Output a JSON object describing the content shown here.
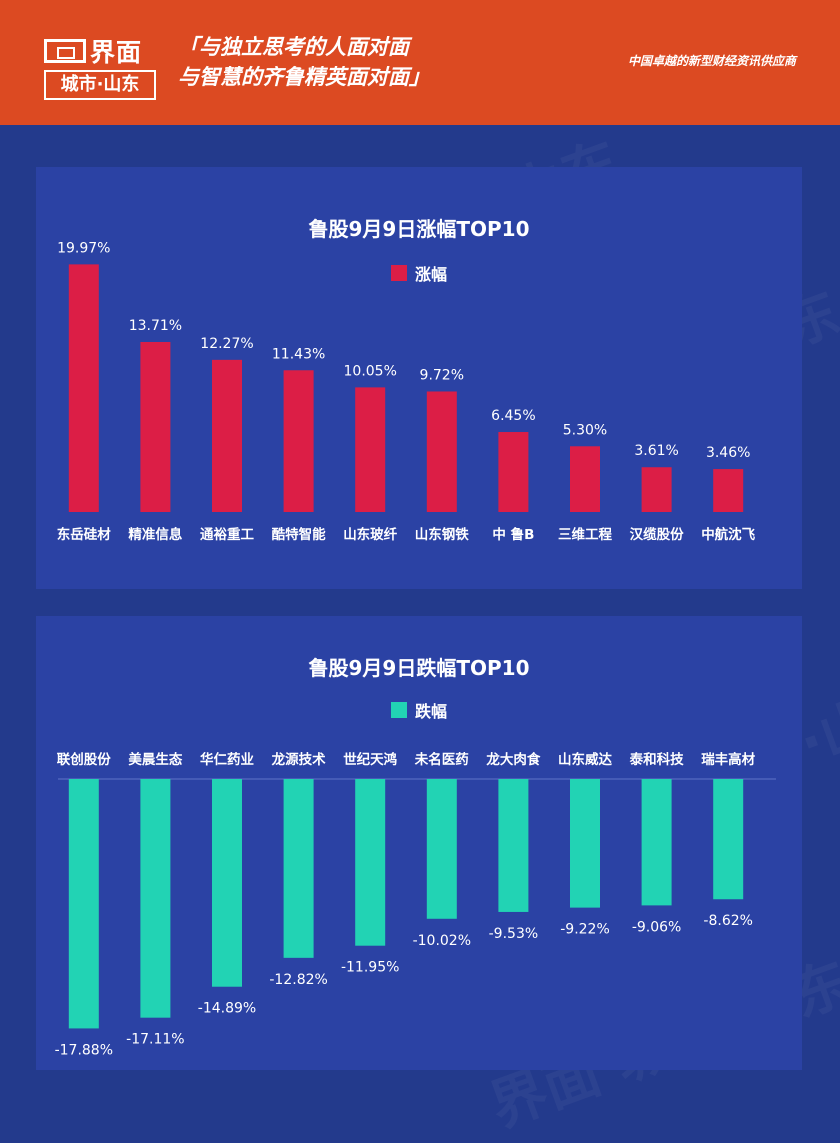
{
  "header": {
    "logo_name": "界面",
    "logo_city": "城市·山东",
    "slogan_line1": "「与独立思考的人面对面",
    "slogan_line2": "与智慧的齐鲁精英面对面」",
    "tagline": "中国卓越的新型财经资讯供应商"
  },
  "watermark": "界面 城市·山东",
  "colors": {
    "gain": "#dc1e46",
    "loss": "#22d3b4"
  },
  "chart_data": [
    {
      "type": "bar",
      "title": "鲁股9月9日涨幅TOP10",
      "legend": "涨幅",
      "categories": [
        "东岳硅材",
        "精准信息",
        "通裕重工",
        "酷特智能",
        "山东玻纤",
        "山东钢铁",
        "中 鲁B",
        "三维工程",
        "汉缆股份",
        "中航沈飞"
      ],
      "values": [
        19.97,
        13.71,
        12.27,
        11.43,
        10.05,
        9.72,
        6.45,
        5.3,
        3.61,
        3.46
      ],
      "value_labels": [
        "19.97%",
        "13.71%",
        "12.27%",
        "11.43%",
        "10.05%",
        "9.72%",
        "6.45%",
        "5.30%",
        "3.61%",
        "3.46%"
      ],
      "ylim": [
        0,
        20
      ]
    },
    {
      "type": "bar",
      "title": "鲁股9月9日跌幅TOP10",
      "legend": "跌幅",
      "categories": [
        "联创股份",
        "美晨生态",
        "华仁药业",
        "龙源技术",
        "世纪天鸿",
        "未名医药",
        "龙大肉食",
        "山东威达",
        "泰和科技",
        "瑞丰高材"
      ],
      "values": [
        -17.88,
        -17.11,
        -14.89,
        -12.82,
        -11.95,
        -10.02,
        -9.53,
        -9.22,
        -9.06,
        -8.62
      ],
      "value_labels": [
        "-17.88%",
        "-17.11%",
        "-14.89%",
        "-12.82%",
        "-11.95%",
        "-10.02%",
        "-9.53%",
        "-9.22%",
        "-9.06%",
        "-8.62%"
      ],
      "ylim": [
        -18,
        0
      ]
    }
  ]
}
